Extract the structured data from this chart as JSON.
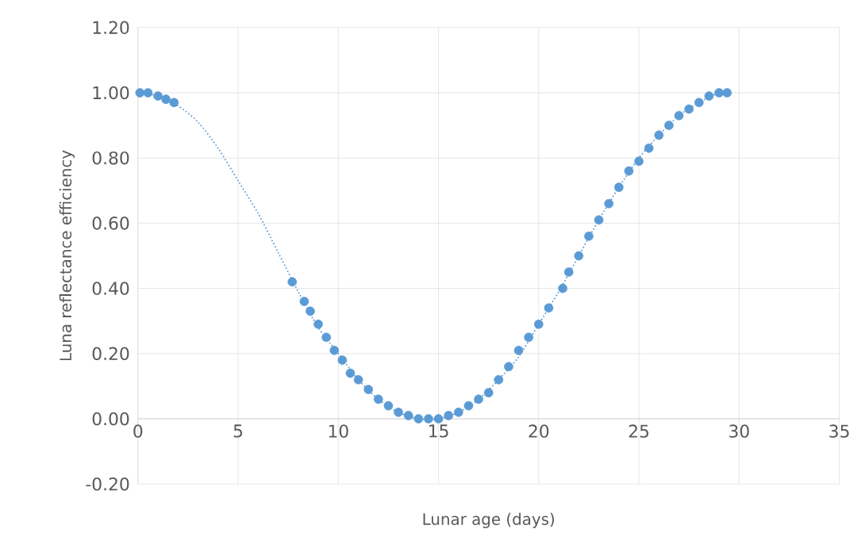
{
  "chart_data": {
    "type": "scatter",
    "xlabel": "Lunar age (days)",
    "ylabel": "Luna reflectance efficiency",
    "xlim": [
      0,
      35
    ],
    "xticks": [
      0,
      5,
      10,
      15,
      20,
      25,
      30,
      35
    ],
    "ylim": [
      -0.2,
      1.2
    ],
    "yticks": [
      {
        "value": -0.2,
        "label": "-0.20"
      },
      {
        "value": 0,
        "label": "0.00"
      },
      {
        "value": 0.2,
        "label": "0.20"
      },
      {
        "value": 0.4,
        "label": "0.40"
      },
      {
        "value": 0.6,
        "label": "0.60"
      },
      {
        "value": 0.8,
        "label": "0.80"
      },
      {
        "value": 1.0,
        "label": "1.00"
      },
      {
        "value": 1.2,
        "label": "1.20"
      }
    ],
    "grid": true,
    "series": [
      {
        "type": "line",
        "color": "#5b9bd5",
        "line_style": "dotted",
        "marker": "none",
        "x": [
          0,
          1,
          2,
          3,
          4,
          5,
          6,
          7,
          8,
          9,
          10,
          11,
          12,
          13,
          14,
          15,
          16,
          17,
          18,
          19,
          20,
          21,
          22,
          23,
          24,
          25,
          26,
          27,
          28,
          29,
          29.5
        ],
        "values": [
          1.0,
          0.99,
          0.96,
          0.91,
          0.83,
          0.73,
          0.63,
          0.51,
          0.39,
          0.28,
          0.2,
          0.12,
          0.06,
          0.02,
          0.0,
          0.0,
          0.02,
          0.06,
          0.12,
          0.19,
          0.29,
          0.39,
          0.5,
          0.61,
          0.71,
          0.8,
          0.87,
          0.93,
          0.97,
          1.0,
          1.0
        ]
      },
      {
        "color": "#5b9bd5",
        "marker": "circle",
        "x": [
          0.1,
          0.5,
          1.0,
          1.4,
          1.8,
          7.7,
          8.3,
          8.6,
          9.0,
          9.4,
          9.8,
          10.2,
          10.6,
          11.0,
          11.5,
          12.0,
          12.5,
          13.0,
          13.5,
          14.0,
          14.5,
          15.0,
          15.5,
          16.0,
          16.5,
          17.0,
          17.5,
          18.0,
          18.5,
          19.0,
          19.5,
          20.0,
          20.5,
          21.2,
          21.5,
          22.0,
          22.5,
          23.0,
          23.5,
          24.0,
          24.5,
          25.0,
          25.5,
          26.0,
          26.5,
          27.0,
          27.5,
          28.0,
          28.5,
          29.0,
          29.4
        ],
        "values": [
          1.0,
          1.0,
          0.99,
          0.98,
          0.97,
          0.42,
          0.36,
          0.33,
          0.29,
          0.25,
          0.21,
          0.18,
          0.14,
          0.12,
          0.09,
          0.06,
          0.04,
          0.02,
          0.01,
          0.0,
          0.0,
          0.0,
          0.01,
          0.02,
          0.04,
          0.06,
          0.08,
          0.12,
          0.16,
          0.21,
          0.25,
          0.29,
          0.34,
          0.4,
          0.45,
          0.5,
          0.56,
          0.61,
          0.66,
          0.71,
          0.76,
          0.79,
          0.83,
          0.87,
          0.9,
          0.93,
          0.95,
          0.97,
          0.99,
          1.0,
          1.0
        ]
      }
    ]
  }
}
